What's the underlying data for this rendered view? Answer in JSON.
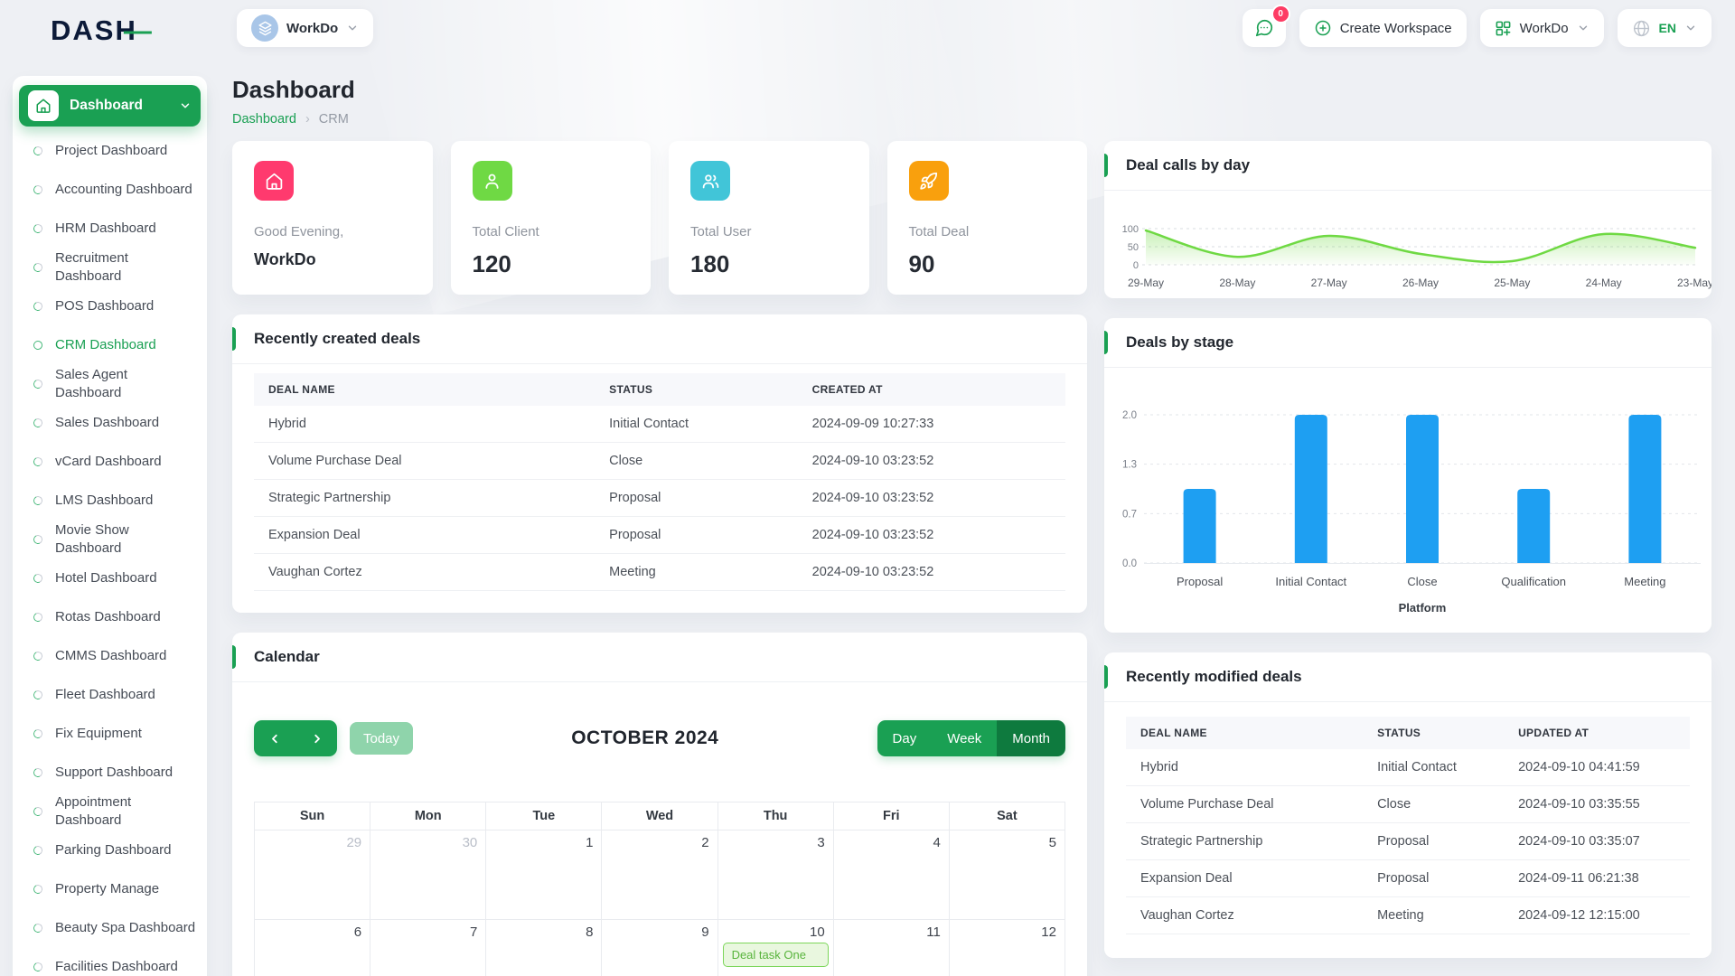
{
  "header": {
    "logo_text": "DASH",
    "workspace_switcher_label": "WorkDo",
    "notifications_badge": "0",
    "create_workspace_label": "Create Workspace",
    "workspace_menu_label": "WorkDo",
    "language_label": "EN"
  },
  "sidebar": {
    "dashboard_label": "Dashboard",
    "items": [
      {
        "label": "Project Dashboard"
      },
      {
        "label": "Accounting Dashboard"
      },
      {
        "label": "HRM Dashboard"
      },
      {
        "label": "Recruitment Dashboard"
      },
      {
        "label": "POS Dashboard"
      },
      {
        "label": "CRM Dashboard",
        "active": true
      },
      {
        "label": "Sales Agent Dashboard"
      },
      {
        "label": "Sales Dashboard"
      },
      {
        "label": "vCard Dashboard"
      },
      {
        "label": "LMS Dashboard"
      },
      {
        "label": "Movie Show Dashboard"
      },
      {
        "label": "Hotel Dashboard"
      },
      {
        "label": "Rotas Dashboard"
      },
      {
        "label": "CMMS Dashboard"
      },
      {
        "label": "Fleet Dashboard"
      },
      {
        "label": "Fix Equipment"
      },
      {
        "label": "Support Dashboard"
      },
      {
        "label": "Appointment Dashboard"
      },
      {
        "label": "Parking Dashboard"
      },
      {
        "label": "Property Manage"
      },
      {
        "label": "Beauty Spa Dashboard"
      },
      {
        "label": "Facilities Dashboard"
      }
    ]
  },
  "page": {
    "title": "Dashboard",
    "breadcrumb_home": "Dashboard",
    "breadcrumb_current": "CRM"
  },
  "stats": [
    {
      "label": "Good Evening,",
      "value": "WorkDo",
      "icon": "home-icon",
      "color": "#ff3a6e"
    },
    {
      "label": "Total Client",
      "value": "120",
      "icon": "user-icon",
      "color": "#6fd944"
    },
    {
      "label": "Total User",
      "value": "180",
      "icon": "users-icon",
      "color": "#41c5d8"
    },
    {
      "label": "Total Deal",
      "value": "90",
      "icon": "rocket-icon",
      "color": "#f9a00d"
    }
  ],
  "recently_created": {
    "title": "Recently created deals",
    "columns": [
      "DEAL NAME",
      "STATUS",
      "CREATED AT"
    ],
    "rows": [
      {
        "name": "Hybrid",
        "status": "Initial Contact",
        "time": "2024-09-09 10:27:33"
      },
      {
        "name": "Volume Purchase Deal",
        "status": "Close",
        "time": "2024-09-10 03:23:52"
      },
      {
        "name": "Strategic Partnership",
        "status": "Proposal",
        "time": "2024-09-10 03:23:52"
      },
      {
        "name": "Expansion Deal",
        "status": "Proposal",
        "time": "2024-09-10 03:23:52"
      },
      {
        "name": "Vaughan Cortez",
        "status": "Meeting",
        "time": "2024-09-10 03:23:52"
      }
    ]
  },
  "recently_modified": {
    "title": "Recently modified deals",
    "columns": [
      "DEAL NAME",
      "STATUS",
      "UPDATED AT"
    ],
    "rows": [
      {
        "name": "Hybrid",
        "status": "Initial Contact",
        "time": "2024-09-10 04:41:59"
      },
      {
        "name": "Volume Purchase Deal",
        "status": "Close",
        "time": "2024-09-10 03:35:55"
      },
      {
        "name": "Strategic Partnership",
        "status": "Proposal",
        "time": "2024-09-10 03:35:07"
      },
      {
        "name": "Expansion Deal",
        "status": "Proposal",
        "time": "2024-09-11 06:21:38"
      },
      {
        "name": "Vaughan Cortez",
        "status": "Meeting",
        "time": "2024-09-12 12:15:00"
      }
    ]
  },
  "chart_data": [
    {
      "id": "deal-calls-by-day",
      "type": "area",
      "title": "Deal calls by day",
      "x": [
        "29-May",
        "28-May",
        "27-May",
        "26-May",
        "25-May",
        "24-May",
        "23-May"
      ],
      "values": [
        95,
        22,
        80,
        30,
        10,
        85,
        47
      ],
      "ytick_labels": [
        "100",
        "50",
        "0"
      ],
      "ylim": [
        0,
        100
      ],
      "color": "#6fd943",
      "grid": "dashed-horizontal",
      "legend": "none"
    },
    {
      "id": "deals-by-stage",
      "type": "bar",
      "title": "Deals by stage",
      "categories": [
        "Proposal",
        "Initial Contact",
        "Close",
        "Qualification",
        "Meeting"
      ],
      "values": [
        1,
        2,
        2,
        1,
        2
      ],
      "ytick_labels": [
        "2.0",
        "1.3",
        "0.7",
        "0.0"
      ],
      "ylim": [
        0,
        2
      ],
      "xlabel": "Platform",
      "color": "#1e9ff2",
      "grid": "dashed-horizontal",
      "legend": "none"
    }
  ],
  "calendar": {
    "title": "Calendar",
    "toolbar": {
      "today_label": "Today",
      "month_title": "OCTOBER 2024",
      "views": [
        "Day",
        "Week",
        "Month"
      ],
      "active_view": "Month"
    },
    "day_headers": [
      "Sun",
      "Mon",
      "Tue",
      "Wed",
      "Thu",
      "Fri",
      "Sat"
    ],
    "weeks": [
      [
        {
          "day": "29",
          "muted": true
        },
        {
          "day": "30",
          "muted": true
        },
        {
          "day": "1"
        },
        {
          "day": "2"
        },
        {
          "day": "3"
        },
        {
          "day": "4"
        },
        {
          "day": "5"
        }
      ],
      [
        {
          "day": "6"
        },
        {
          "day": "7"
        },
        {
          "day": "8"
        },
        {
          "day": "9"
        },
        {
          "day": "10",
          "event": "Deal task One"
        },
        {
          "day": "11"
        },
        {
          "day": "12"
        }
      ]
    ],
    "event_colors": {
      "bg": "#e9f7df",
      "border": "#7cd65a",
      "text": "#58b43c"
    }
  }
}
